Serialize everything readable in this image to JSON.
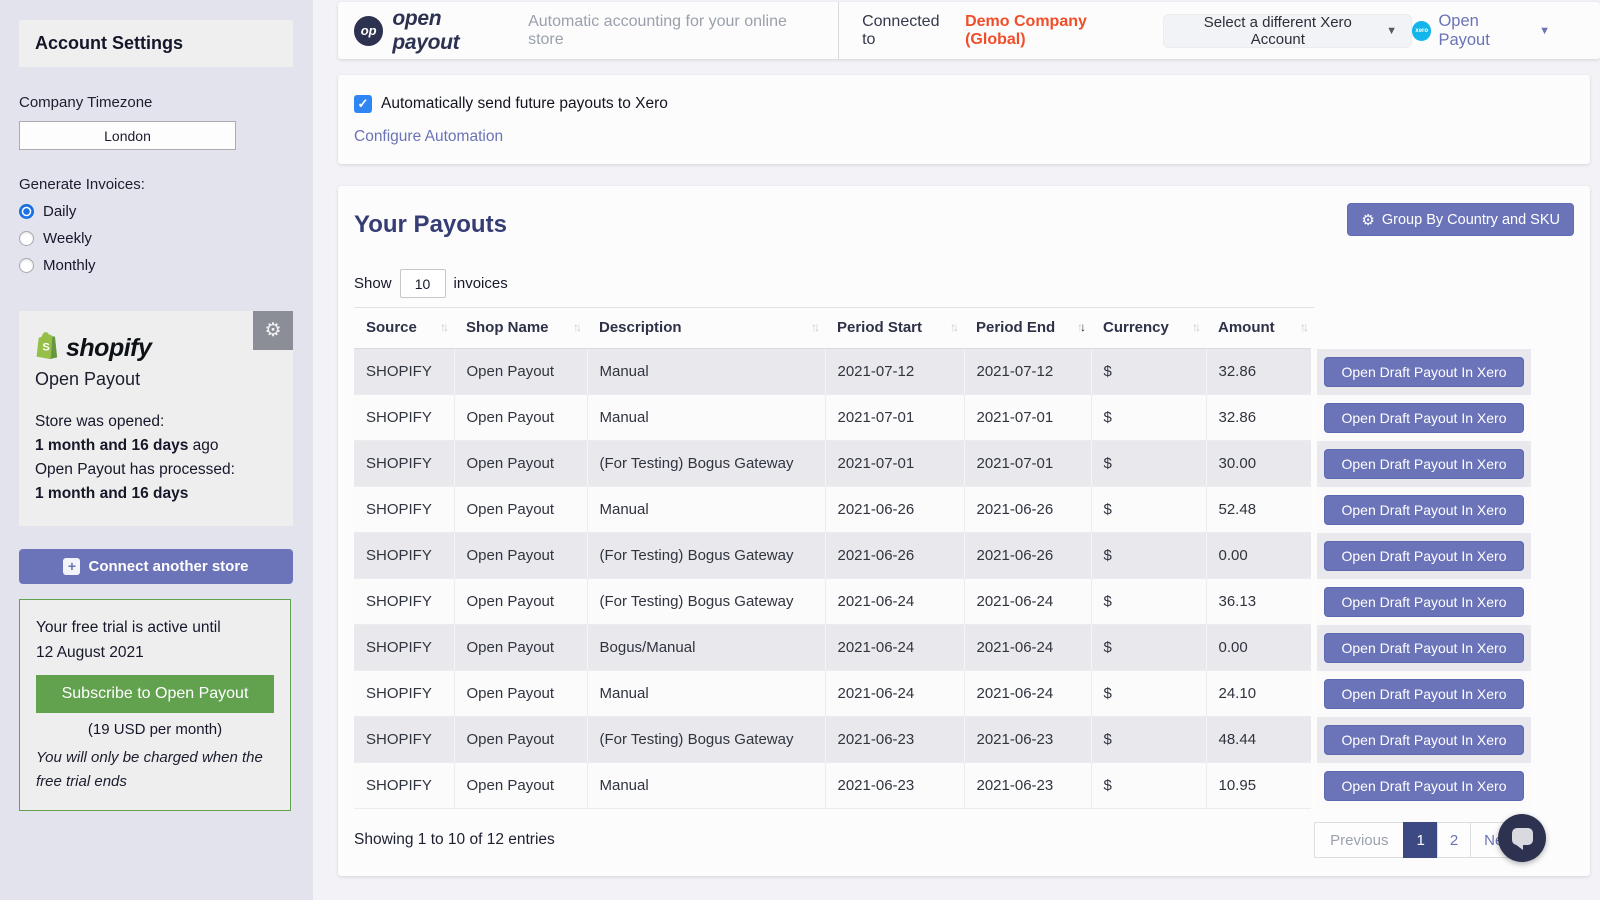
{
  "colors": {
    "accent_purple": "#6b74b8",
    "brand_navy": "#2d3250",
    "heading_indigo": "#363c74",
    "link_purple": "#6a73b6",
    "company_orange": "#f04e29",
    "success_green": "#62a24f",
    "xero_blue": "#13b5ea",
    "active_page": "#3d4983",
    "sidebar_bg": "#e3e3ee",
    "page_bg": "#f2f2f7"
  },
  "sidebar": {
    "title": "Account Settings",
    "timezone_label": "Company Timezone",
    "timezone_value": "London",
    "generate_invoices_label": "Generate Invoices:",
    "invoice_options": [
      {
        "label": "Daily",
        "selected": true
      },
      {
        "label": "Weekly",
        "selected": false
      },
      {
        "label": "Monthly",
        "selected": false
      }
    ],
    "store_card": {
      "platform": "shopify",
      "store_name": "Open Payout",
      "opened_label": "Store was opened:",
      "opened_value": "1 month and 16 days",
      "opened_suffix": " ago",
      "processed_label": "Open Payout has processed:",
      "processed_value": "1 month and 16 days"
    },
    "connect_button": "Connect another store",
    "trial": {
      "line1": "Your free trial is active until",
      "line2": "12 August 2021",
      "subscribe_button": "Subscribe to Open Payout",
      "price": "(19 USD per month)",
      "note_line1": "You will only be charged when the",
      "note_line2": "free trial ends"
    }
  },
  "header": {
    "logo_monogram": "op",
    "brand": "open payout",
    "tagline": "Automatic accounting for your online store",
    "connected_label": "Connected to",
    "company": "Demo Company (Global)",
    "select_account_button": "Select a different Xero Account",
    "xero_icon_text": "xero",
    "account_menu_label": "Open Payout"
  },
  "automation": {
    "checkbox_label": "Automatically send future payouts to Xero",
    "checked": true,
    "check_glyph": "✓",
    "configure_link": "Configure Automation"
  },
  "payouts": {
    "title": "Your Payouts",
    "group_button": "Group By Country and SKU",
    "show_label": "Show",
    "show_value": "10",
    "show_suffix": "invoices",
    "columns": [
      "Source",
      "Shop Name",
      "Description",
      "Period Start",
      "Period End",
      "Currency",
      "Amount"
    ],
    "sorted_column": "Period End",
    "sorted_direction": "desc",
    "action_label": "Open Draft Payout In Xero",
    "rows": [
      {
        "source": "SHOPIFY",
        "shop_name": "Open Payout",
        "description": "Manual",
        "period_start": "2021-07-12",
        "period_end": "2021-07-12",
        "currency": "$",
        "amount": "32.86"
      },
      {
        "source": "SHOPIFY",
        "shop_name": "Open Payout",
        "description": "Manual",
        "period_start": "2021-07-01",
        "period_end": "2021-07-01",
        "currency": "$",
        "amount": "32.86"
      },
      {
        "source": "SHOPIFY",
        "shop_name": "Open Payout",
        "description": "(For Testing) Bogus Gateway",
        "period_start": "2021-07-01",
        "period_end": "2021-07-01",
        "currency": "$",
        "amount": "30.00"
      },
      {
        "source": "SHOPIFY",
        "shop_name": "Open Payout",
        "description": "Manual",
        "period_start": "2021-06-26",
        "period_end": "2021-06-26",
        "currency": "$",
        "amount": "52.48"
      },
      {
        "source": "SHOPIFY",
        "shop_name": "Open Payout",
        "description": "(For Testing) Bogus Gateway",
        "period_start": "2021-06-26",
        "period_end": "2021-06-26",
        "currency": "$",
        "amount": "0.00"
      },
      {
        "source": "SHOPIFY",
        "shop_name": "Open Payout",
        "description": "(For Testing) Bogus Gateway",
        "period_start": "2021-06-24",
        "period_end": "2021-06-24",
        "currency": "$",
        "amount": "36.13"
      },
      {
        "source": "SHOPIFY",
        "shop_name": "Open Payout",
        "description": "Bogus/Manual",
        "period_start": "2021-06-24",
        "period_end": "2021-06-24",
        "currency": "$",
        "amount": "0.00"
      },
      {
        "source": "SHOPIFY",
        "shop_name": "Open Payout",
        "description": "Manual",
        "period_start": "2021-06-24",
        "period_end": "2021-06-24",
        "currency": "$",
        "amount": "24.10"
      },
      {
        "source": "SHOPIFY",
        "shop_name": "Open Payout",
        "description": "(For Testing) Bogus Gateway",
        "period_start": "2021-06-23",
        "period_end": "2021-06-23",
        "currency": "$",
        "amount": "48.44"
      },
      {
        "source": "SHOPIFY",
        "shop_name": "Open Payout",
        "description": "Manual",
        "period_start": "2021-06-23",
        "period_end": "2021-06-23",
        "currency": "$",
        "amount": "10.95"
      }
    ],
    "footer_text": "Showing 1 to 10 of 12 entries",
    "pagination": {
      "previous": "Previous",
      "pages": [
        "1",
        "2"
      ],
      "active_page": "1",
      "next": "Next"
    }
  }
}
